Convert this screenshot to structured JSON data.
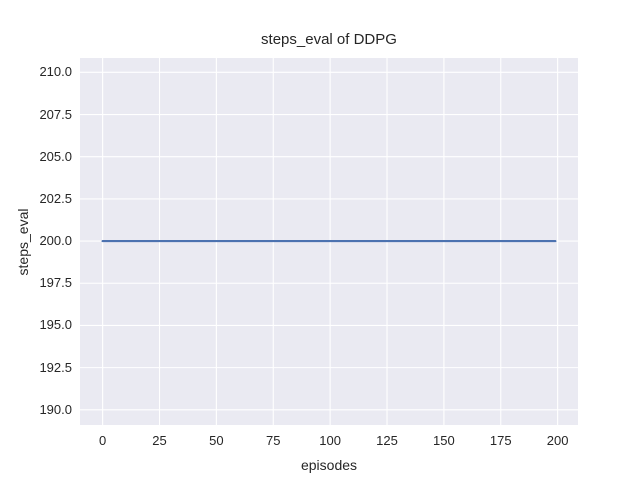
{
  "colors": {
    "figure_bg": "#ffffff",
    "plot_bg": "#eaeaf2",
    "grid": "#ffffff",
    "text": "#262626",
    "line": "#4c72b0"
  },
  "chart_data": {
    "type": "line",
    "title": "steps_eval of DDPG",
    "xlabel": "episodes",
    "ylabel": "steps_eval",
    "grid": true,
    "legend": false,
    "xlim": [
      -9.95,
      208.95
    ],
    "ylim": [
      189.1,
      210.85
    ],
    "x_ticks": [
      {
        "value": 0,
        "label": "0"
      },
      {
        "value": 25,
        "label": "25"
      },
      {
        "value": 50,
        "label": "50"
      },
      {
        "value": 75,
        "label": "75"
      },
      {
        "value": 100,
        "label": "100"
      },
      {
        "value": 125,
        "label": "125"
      },
      {
        "value": 150,
        "label": "150"
      },
      {
        "value": 175,
        "label": "175"
      },
      {
        "value": 200,
        "label": "200"
      }
    ],
    "y_ticks": [
      {
        "value": 190.0,
        "label": "190.0"
      },
      {
        "value": 192.5,
        "label": "192.5"
      },
      {
        "value": 195.0,
        "label": "195.0"
      },
      {
        "value": 197.5,
        "label": "197.5"
      },
      {
        "value": 200.0,
        "label": "200.0"
      },
      {
        "value": 202.5,
        "label": "202.5"
      },
      {
        "value": 205.0,
        "label": "205.0"
      },
      {
        "value": 207.5,
        "label": "207.5"
      },
      {
        "value": 210.0,
        "label": "210.0"
      }
    ],
    "series": [
      {
        "name": "steps_eval",
        "color": "#4c72b0",
        "x": [
          0,
          199
        ],
        "y": [
          200,
          200
        ]
      }
    ]
  }
}
